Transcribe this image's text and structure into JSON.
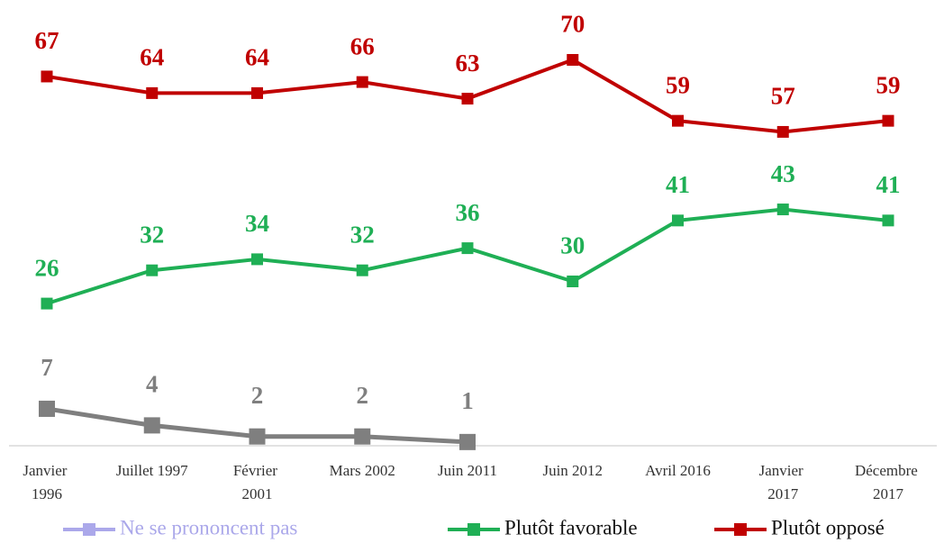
{
  "chart_data": {
    "type": "line",
    "categories": [
      "Janvier 1996",
      "Juillet 1997",
      "Février 2001",
      "Mars 2002",
      "Juin 2011",
      "Juin 2012",
      "Avril 2016",
      "Janvier 2017",
      "Décembre 2017"
    ],
    "series": [
      {
        "name": "Ne se prononcent pas",
        "color": "#7f7f7f",
        "legend_color": "#aba8ea",
        "values": [
          7,
          4,
          2,
          2,
          1,
          null,
          null,
          null,
          null
        ]
      },
      {
        "name": "Plutôt favorable",
        "color": "#1faf55",
        "values": [
          26,
          32,
          34,
          32,
          36,
          30,
          41,
          43,
          41
        ]
      },
      {
        "name": "Plutôt opposé",
        "color": "#c00000",
        "values": [
          67,
          64,
          64,
          66,
          63,
          70,
          59,
          57,
          59
        ]
      }
    ],
    "ylim": [
      0,
      80
    ],
    "legend": "bottom"
  }
}
